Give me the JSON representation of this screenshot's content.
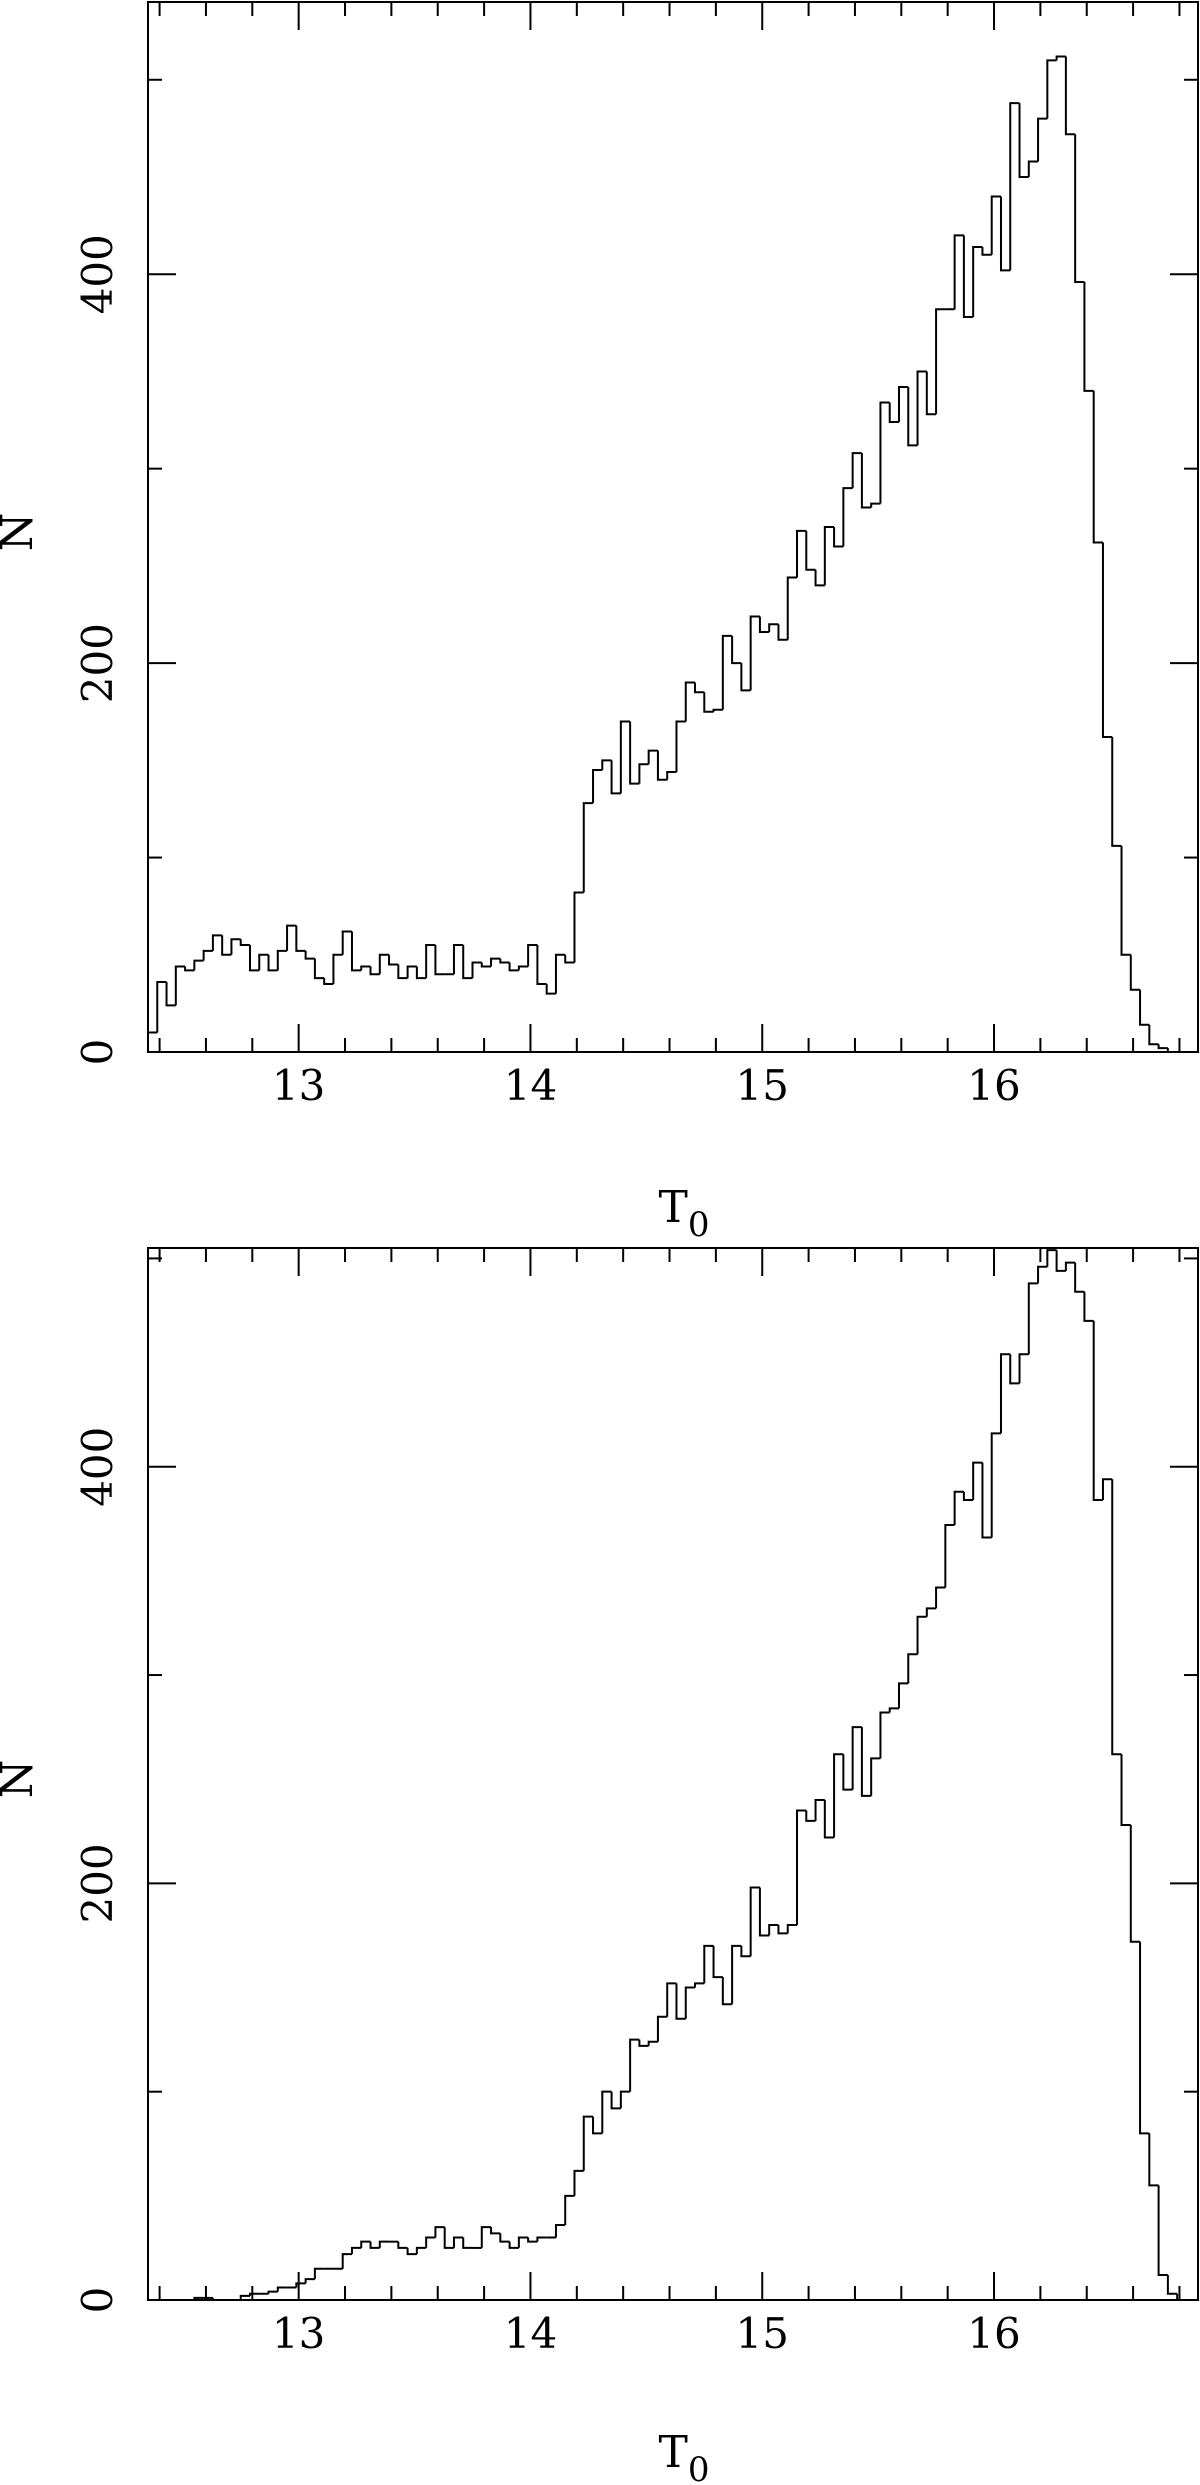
{
  "chart_data": [
    {
      "type": "bar",
      "style": "step-histogram",
      "xlabel": "T",
      "xlabel_sub": "0",
      "ylabel": "N",
      "xlim": [
        12.35,
        16.88
      ],
      "ylim": [
        0,
        540
      ],
      "x_ticks": [
        13,
        14,
        15,
        16
      ],
      "y_ticks": [
        0,
        200,
        400
      ],
      "x_tick_labels": [
        "13",
        "14",
        "15",
        "16"
      ],
      "y_tick_labels": [
        "0",
        "200",
        "400"
      ],
      "bin_start": 12.35,
      "bin_width": 0.04,
      "values": [
        10,
        36,
        24,
        44,
        42,
        47,
        52,
        60,
        50,
        58,
        55,
        42,
        50,
        42,
        52,
        65,
        52,
        48,
        38,
        35,
        50,
        62,
        42,
        44,
        40,
        50,
        45,
        38,
        44,
        38,
        55,
        40,
        40,
        55,
        38,
        46,
        44,
        48,
        46,
        42,
        44,
        55,
        35,
        30,
        50,
        46,
        82,
        128,
        145,
        150,
        133,
        170,
        138,
        148,
        155,
        140,
        144,
        170,
        190,
        185,
        175,
        176,
        214,
        200,
        186,
        224,
        216,
        220,
        212,
        244,
        268,
        248,
        240,
        270,
        260,
        290,
        308,
        280,
        282,
        334,
        324,
        342,
        312,
        350,
        328,
        382,
        382,
        420,
        378,
        414,
        410,
        440,
        402,
        488,
        450,
        458,
        480,
        510,
        512,
        472,
        396,
        340,
        262,
        162,
        106,
        50,
        32,
        14,
        4,
        2,
        0,
        0,
        0,
        0,
        0,
        0,
        0,
        0,
        0,
        0,
        0,
        0,
        0
      ]
    },
    {
      "type": "bar",
      "style": "step-histogram",
      "xlabel": "T",
      "xlabel_sub": "0",
      "ylabel": "N",
      "xlim": [
        12.35,
        16.88
      ],
      "ylim": [
        0,
        505
      ],
      "x_ticks": [
        13,
        14,
        15,
        16
      ],
      "y_ticks": [
        0,
        200,
        400
      ],
      "x_tick_labels": [
        "13",
        "14",
        "15",
        "16"
      ],
      "y_tick_labels": [
        "0",
        "200",
        "400"
      ],
      "bin_start": 12.35,
      "bin_width": 0.04,
      "values": [
        0,
        0,
        0,
        0,
        0,
        1,
        1,
        0,
        0,
        0,
        2,
        3,
        3,
        4,
        6,
        6,
        8,
        10,
        15,
        15,
        15,
        22,
        25,
        28,
        25,
        28,
        28,
        25,
        22,
        25,
        30,
        35,
        25,
        30,
        25,
        25,
        35,
        32,
        28,
        25,
        30,
        28,
        30,
        30,
        36,
        50,
        62,
        88,
        80,
        100,
        92,
        100,
        125,
        122,
        124,
        136,
        152,
        135,
        150,
        152,
        170,
        155,
        142,
        170,
        165,
        198,
        175,
        180,
        176,
        180,
        235,
        230,
        240,
        222,
        262,
        245,
        275,
        242,
        260,
        282,
        284,
        296,
        310,
        328,
        332,
        342,
        372,
        388,
        384,
        402,
        366,
        416,
        454,
        440,
        454,
        488,
        496,
        504,
        494,
        498,
        484,
        470,
        384,
        394,
        262,
        228,
        172,
        80,
        55,
        12,
        3,
        0,
        0,
        0,
        0,
        0,
        0,
        0,
        0,
        0,
        0,
        0,
        0
      ]
    }
  ]
}
